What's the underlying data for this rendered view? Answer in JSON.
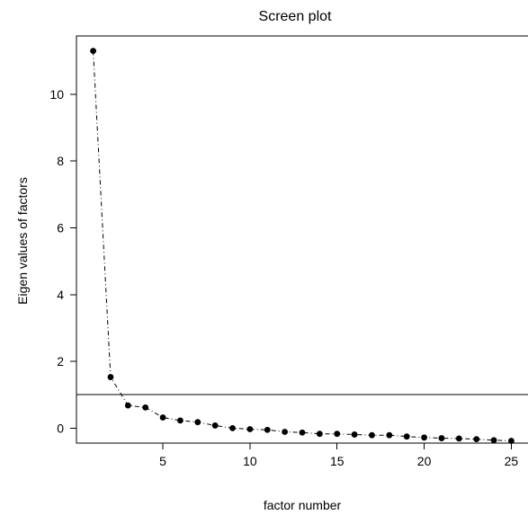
{
  "chart_data": {
    "type": "line",
    "title": "Screen plot",
    "xlabel": "factor number",
    "ylabel": "Eigen values of factors",
    "x": [
      1,
      2,
      3,
      4,
      5,
      6,
      7,
      8,
      9,
      10,
      11,
      12,
      13,
      14,
      15,
      16,
      17,
      18,
      19,
      20,
      21,
      22,
      23,
      24,
      25
    ],
    "series": [
      {
        "values": [
          11.3,
          1.53,
          0.68,
          0.62,
          0.32,
          0.23,
          0.18,
          0.08,
          0.0,
          -0.03,
          -0.05,
          -0.11,
          -0.13,
          -0.17,
          -0.17,
          -0.19,
          -0.21,
          -0.21,
          -0.25,
          -0.28,
          -0.3,
          -0.31,
          -0.33,
          -0.36,
          -0.38
        ]
      }
    ],
    "reference_line": {
      "y": 1
    },
    "xlim": [
      0.04,
      25.96
    ],
    "ylim": [
      -0.447,
      11.747
    ],
    "xticks": [
      5,
      10,
      15,
      20,
      25
    ],
    "yticks": [
      0,
      2,
      4,
      6,
      8,
      10
    ],
    "grid": false,
    "legend": "none",
    "colors": {
      "line": "#000000",
      "points": "#000000",
      "reference": "#000000"
    }
  }
}
